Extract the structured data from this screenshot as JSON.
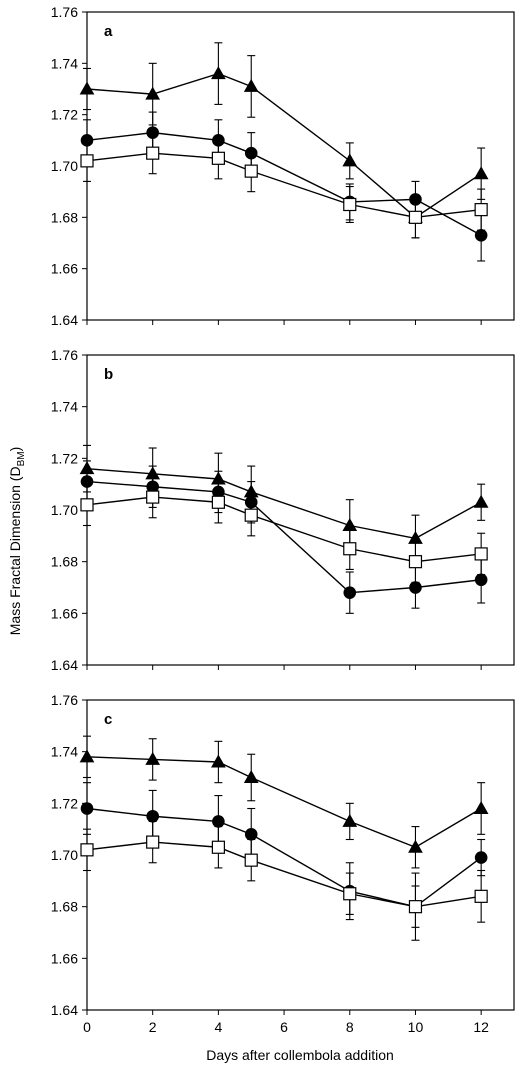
{
  "chart_data": [
    {
      "type": "line",
      "panel_label": "a",
      "x": [
        0,
        2,
        4,
        5,
        8,
        10,
        12
      ],
      "ylim": [
        1.64,
        1.76
      ],
      "xlim": [
        0,
        13
      ],
      "yticks": [
        "1.64",
        "1.66",
        "1.68",
        "1.70",
        "1.72",
        "1.74",
        "1.76"
      ],
      "series": [
        {
          "marker": "triangle",
          "values": [
            1.73,
            1.728,
            1.736,
            1.731,
            1.702,
            1.68,
            1.697
          ],
          "errors": [
            0.008,
            0.012,
            0.012,
            0.012,
            0.007,
            0.008,
            0.01
          ]
        },
        {
          "marker": "circle",
          "values": [
            1.71,
            1.713,
            1.71,
            1.705,
            1.686,
            1.687,
            1.673
          ],
          "errors": [
            0.008,
            0.008,
            0.008,
            0.008,
            0.007,
            0.007,
            0.01
          ]
        },
        {
          "marker": "open-square",
          "values": [
            1.702,
            1.705,
            1.703,
            1.698,
            1.685,
            1.68,
            1.683
          ],
          "errors": [
            0.008,
            0.008,
            0.008,
            0.008,
            0.007,
            0.008,
            0.008
          ]
        }
      ]
    },
    {
      "type": "line",
      "panel_label": "b",
      "x": [
        0,
        2,
        4,
        5,
        8,
        10,
        12
      ],
      "ylim": [
        1.64,
        1.76
      ],
      "xlim": [
        0,
        13
      ],
      "yticks": [
        "1.64",
        "1.66",
        "1.68",
        "1.70",
        "1.72",
        "1.74",
        "1.76"
      ],
      "series": [
        {
          "marker": "triangle",
          "values": [
            1.716,
            1.714,
            1.712,
            1.707,
            1.694,
            1.689,
            1.703
          ],
          "errors": [
            0.009,
            0.01,
            0.01,
            0.01,
            0.01,
            0.009,
            0.007
          ]
        },
        {
          "marker": "circle",
          "values": [
            1.711,
            1.709,
            1.707,
            1.703,
            1.668,
            1.67,
            1.673
          ],
          "errors": [
            0.008,
            0.008,
            0.008,
            0.008,
            0.008,
            0.008,
            0.009
          ]
        },
        {
          "marker": "open-square",
          "values": [
            1.702,
            1.705,
            1.703,
            1.698,
            1.685,
            1.68,
            1.683
          ],
          "errors": [
            0.008,
            0.008,
            0.008,
            0.008,
            0.008,
            0.008,
            0.008
          ]
        }
      ]
    },
    {
      "type": "line",
      "panel_label": "c",
      "x": [
        0,
        2,
        4,
        5,
        8,
        10,
        12
      ],
      "ylim": [
        1.64,
        1.76
      ],
      "xlim": [
        0,
        13
      ],
      "xticks": [
        "0",
        "2",
        "4",
        "6",
        "8",
        "10",
        "12"
      ],
      "yticks": [
        "1.64",
        "1.66",
        "1.68",
        "1.70",
        "1.72",
        "1.74",
        "1.76"
      ],
      "series": [
        {
          "marker": "triangle",
          "values": [
            1.738,
            1.737,
            1.736,
            1.73,
            1.713,
            1.703,
            1.718
          ],
          "errors": [
            0.008,
            0.008,
            0.008,
            0.009,
            0.007,
            0.008,
            0.01
          ]
        },
        {
          "marker": "circle",
          "values": [
            1.718,
            1.715,
            1.713,
            1.708,
            1.686,
            1.68,
            1.699
          ],
          "errors": [
            0.01,
            0.01,
            0.01,
            0.01,
            0.011,
            0.013,
            0.007
          ]
        },
        {
          "marker": "open-square",
          "values": [
            1.702,
            1.705,
            1.703,
            1.698,
            1.685,
            1.68,
            1.684
          ],
          "errors": [
            0.008,
            0.008,
            0.008,
            0.008,
            0.008,
            0.008,
            0.01
          ]
        }
      ]
    }
  ],
  "ylabel_prefix": "Mass Fractal Dimension (D",
  "ylabel_subscript": "BM",
  "ylabel_suffix": ")",
  "xlabel": "Days after collembola addition",
  "colors": {
    "axis": "#000000",
    "line": "#000000",
    "marker_fill": "#000000",
    "open_marker_fill": "#ffffff"
  }
}
